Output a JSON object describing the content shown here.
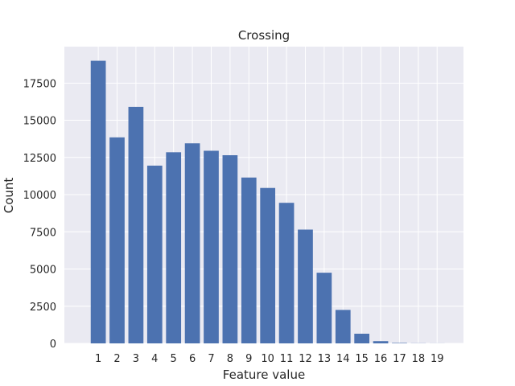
{
  "chart_data": {
    "type": "bar",
    "title": "Crossing",
    "xlabel": "Feature value",
    "ylabel": "Count",
    "categories": [
      "1",
      "2",
      "3",
      "4",
      "5",
      "6",
      "7",
      "8",
      "9",
      "10",
      "11",
      "12",
      "13",
      "14",
      "15",
      "16",
      "17",
      "18",
      "19"
    ],
    "values": [
      19000,
      13850,
      15900,
      11950,
      12850,
      13450,
      12950,
      12650,
      11150,
      10450,
      9450,
      7650,
      4750,
      2250,
      650,
      150,
      30,
      10,
      5
    ],
    "ylim": [
      0,
      19950
    ],
    "yticks": [
      0,
      2500,
      5000,
      7500,
      10000,
      12500,
      15000,
      17500
    ],
    "grid": true,
    "colors": {
      "bar": "#4c72b0",
      "background": "#eaeaf2",
      "grid": "#ffffff"
    }
  }
}
